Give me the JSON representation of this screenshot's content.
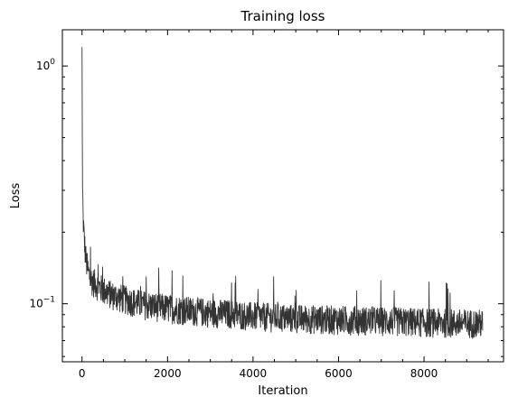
{
  "chart_data": {
    "type": "line",
    "title": "Training loss",
    "xlabel": "Iteration",
    "ylabel": "Loss",
    "xscale": "linear",
    "yscale": "log",
    "xlim": [
      -460,
      9860
    ],
    "ylim": [
      0.057,
      1.42
    ],
    "grid": false,
    "legend": "none",
    "line_color": "#333333",
    "xticks": [
      {
        "value": 0,
        "label": "0"
      },
      {
        "value": 2000,
        "label": "2000"
      },
      {
        "value": 4000,
        "label": "4000"
      },
      {
        "value": 6000,
        "label": "6000"
      },
      {
        "value": 8000,
        "label": "8000"
      }
    ],
    "yticks": [
      {
        "value": 0.1,
        "label": "10",
        "exp": "−1"
      },
      {
        "value": 1,
        "label": "10",
        "exp": "0"
      }
    ],
    "series": [
      {
        "x": [
          0,
          10,
          25,
          50,
          75,
          100,
          150,
          200,
          300,
          400,
          500,
          700,
          900,
          1200,
          1500,
          2000,
          2500,
          3000,
          3500,
          4000,
          5000,
          6000,
          7000,
          8000,
          9000,
          9375
        ],
        "y": [
          1.2,
          0.3,
          0.23,
          0.19,
          0.165,
          0.15,
          0.135,
          0.127,
          0.122,
          0.118,
          0.114,
          0.109,
          0.106,
          0.102,
          0.099,
          0.096,
          0.094,
          0.092,
          0.091,
          0.089,
          0.087,
          0.086,
          0.085,
          0.084,
          0.083,
          0.083
        ]
      }
    ]
  }
}
